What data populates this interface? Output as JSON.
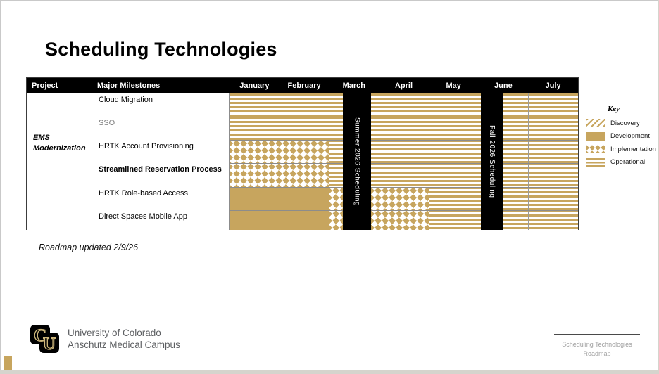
{
  "slide": {
    "title": "Scheduling Technologies",
    "updated_note": "Roadmap updated 2/9/26"
  },
  "table": {
    "header_project": "Project",
    "header_milestones": "Major Milestones"
  },
  "chart_data": {
    "type": "table",
    "subtype": "gantt-roadmap",
    "title": "Scheduling Technologies",
    "project": "EMS Modernization",
    "months": [
      "January",
      "February",
      "March",
      "April",
      "May",
      "June",
      "July"
    ],
    "x_unit": "month index, January=0 through July=7",
    "rows": [
      {
        "milestone": "Cloud Migration",
        "style": "normal",
        "segments": [
          {
            "phase": "operational",
            "start": 0,
            "end": 7
          }
        ]
      },
      {
        "milestone": "SSO",
        "style": "muted",
        "segments": [
          {
            "phase": "operational",
            "start": 0,
            "end": 7
          }
        ]
      },
      {
        "milestone": "HRTK Account Provisioning",
        "style": "normal",
        "segments": [
          {
            "phase": "implementation",
            "start": 0,
            "end": 2
          },
          {
            "phase": "operational",
            "start": 2,
            "end": 7
          }
        ]
      },
      {
        "milestone": "Streamlined Reservation Process",
        "style": "bold",
        "segments": [
          {
            "phase": "implementation",
            "start": 0,
            "end": 2
          },
          {
            "phase": "operational",
            "start": 2,
            "end": 7
          }
        ]
      },
      {
        "milestone": "HRTK Role-based Access",
        "style": "normal",
        "segments": [
          {
            "phase": "development",
            "start": 0,
            "end": 2
          },
          {
            "phase": "implementation",
            "start": 2,
            "end": 4
          },
          {
            "phase": "operational",
            "start": 4,
            "end": 7
          }
        ]
      },
      {
        "milestone": "Direct Spaces Mobile App",
        "style": "normal",
        "segments": [
          {
            "phase": "development",
            "start": 0,
            "end": 2
          },
          {
            "phase": "implementation",
            "start": 2,
            "end": 4
          },
          {
            "phase": "operational",
            "start": 4,
            "end": 7
          }
        ]
      }
    ],
    "event_bars": [
      {
        "label": "Summer 2026 Scheduling",
        "start": 2.28,
        "end": 2.84
      },
      {
        "label": "Fall 2026 Scheduling",
        "start": 5.05,
        "end": 5.48
      }
    ],
    "legend_position": "right"
  },
  "legend": {
    "title": "Key",
    "items": [
      {
        "label": "Discovery",
        "pattern": "discovery"
      },
      {
        "label": "Development",
        "pattern": "development"
      },
      {
        "label": "Implementation",
        "pattern": "implementation"
      },
      {
        "label": "Operational",
        "pattern": "operational"
      }
    ]
  },
  "footer": {
    "org_line1": "University of Colorado",
    "org_line2": "Anschutz Medical Campus",
    "right_line1": "Scheduling Technologies",
    "right_line2": "Roadmap"
  },
  "colors": {
    "gold": "#c7a55e",
    "header_bg": "#000000",
    "header_text": "#ffffff",
    "muted_text": "#7f7f7f",
    "grid_line": "#8c8c8c",
    "footer_org_text": "#5d5f62",
    "footer_right_text": "#9e9e9e"
  }
}
